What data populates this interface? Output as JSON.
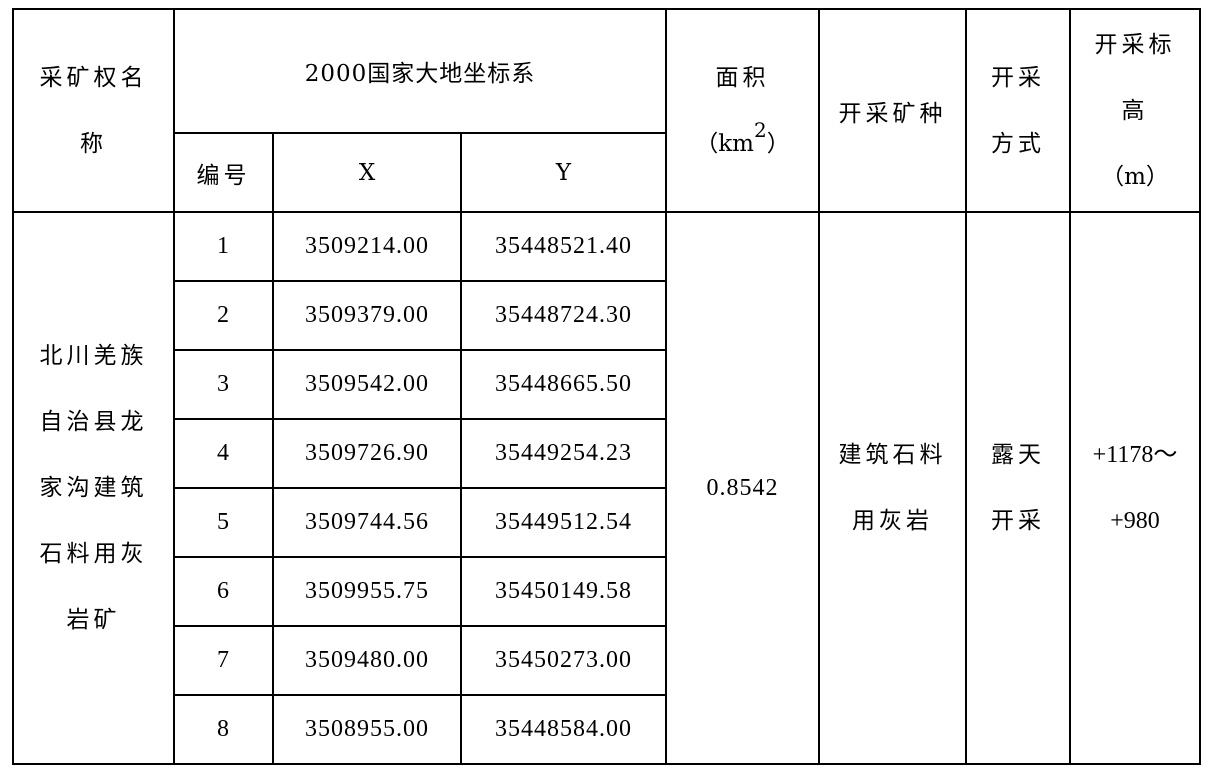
{
  "table": {
    "headers": {
      "name": "采矿权名称",
      "coord_system": "2000国家大地坐标系",
      "point_no": "编号",
      "x": "X",
      "y": "Y",
      "area_label": "面积",
      "area_unit_open": "（km",
      "area_unit_sup": "2",
      "area_unit_close": "）",
      "mineral": "开采矿种",
      "method": "开采方式",
      "elevation": "开采标高",
      "elevation_unit": "（m）"
    },
    "mine_name": "北川羌族自治县龙家沟建筑石料用灰岩矿",
    "points": [
      {
        "no": "1",
        "x": "3509214.00",
        "y": "35448521.40"
      },
      {
        "no": "2",
        "x": "3509379.00",
        "y": "35448724.30"
      },
      {
        "no": "3",
        "x": "3509542.00",
        "y": "35448665.50"
      },
      {
        "no": "4",
        "x": "3509726.90",
        "y": "35449254.23"
      },
      {
        "no": "5",
        "x": "3509744.56",
        "y": "35449512.54"
      },
      {
        "no": "6",
        "x": "3509955.75",
        "y": "35450149.58"
      },
      {
        "no": "7",
        "x": "3509480.00",
        "y": "35450273.00"
      },
      {
        "no": "8",
        "x": "3508955.00",
        "y": "35448584.00"
      }
    ],
    "area": "0.8542",
    "mineral": "建筑石料用灰岩",
    "method": "露天开采",
    "elevation_top": "+1178～",
    "elevation_bottom": "+980"
  }
}
